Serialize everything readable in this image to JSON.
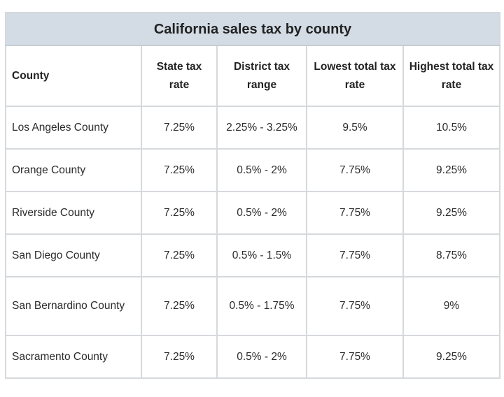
{
  "title": "California sales tax by county",
  "columns": [
    "County",
    "State tax rate",
    "District tax range",
    "Lowest total tax rate",
    "Highest total tax rate"
  ],
  "rows": [
    [
      "Los Angeles County",
      "7.25%",
      "2.25% - 3.25%",
      "9.5%",
      "10.5%"
    ],
    [
      "Orange County",
      "7.25%",
      "0.5% - 2%",
      "7.75%",
      "9.25%"
    ],
    [
      "Riverside County",
      "7.25%",
      "0.5% - 2%",
      "7.75%",
      "9.25%"
    ],
    [
      "San Diego County",
      "7.25%",
      "0.5% - 1.5%",
      "7.75%",
      "8.75%"
    ],
    [
      "San Bernardino County",
      "7.25%",
      "0.5% - 1.75%",
      "7.75%",
      "9%"
    ],
    [
      "Sacramento County",
      "7.25%",
      "0.5% - 2%",
      "7.75%",
      "9.25%"
    ]
  ],
  "colors": {
    "title_bg": "#d3dce5",
    "border": "#d6d9dc"
  }
}
